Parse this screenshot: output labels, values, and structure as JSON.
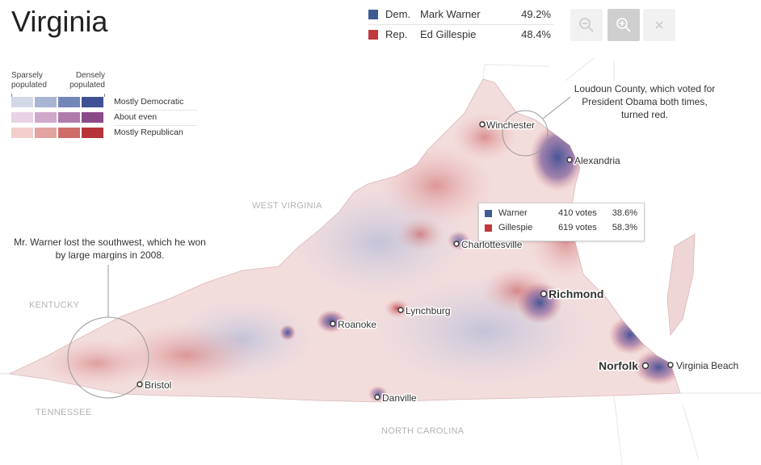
{
  "title": "Virginia",
  "results": [
    {
      "party": "Dem.",
      "name": "Mark Warner",
      "pct": "49.2%",
      "color": "#3e5c93"
    },
    {
      "party": "Rep.",
      "name": "Ed Gillespie",
      "pct": "48.4%",
      "color": "#c0393c"
    }
  ],
  "controls": {
    "zoom_out_icon": "zoom-out-icon",
    "zoom_in_icon": "zoom-in-icon",
    "close_icon": "close-icon"
  },
  "legend": {
    "sparse": "Sparsely populated",
    "dense": "Densely populated",
    "rows": [
      {
        "label": "Mostly Democratic",
        "colors": [
          "#d3d8e7",
          "#a8b5d2",
          "#7287b8",
          "#3e5192"
        ]
      },
      {
        "label": "About even",
        "colors": [
          "#e7d3e4",
          "#cfa8ca",
          "#b07aab",
          "#8a4a88"
        ]
      },
      {
        "label": "Mostly Republican",
        "colors": [
          "#f2cfcc",
          "#e3a3a0",
          "#cf6c6a",
          "#b5343a"
        ]
      }
    ]
  },
  "map": {
    "states": {
      "west_virginia": "WEST VIRGINIA",
      "kentucky": "KENTUCKY",
      "tennessee": "TENNESSEE",
      "north_carolina": "NORTH CAROLINA"
    },
    "cities": {
      "winchester": "Winchester",
      "alexandria": "Alexandria",
      "charlottesville": "Charlottesville",
      "richmond": "Richmond",
      "lynchburg": "Lynchburg",
      "roanoke": "Roanoke",
      "norfolk": "Norfolk",
      "virginia_beach": "Virginia Beach",
      "bristol": "Bristol",
      "danville": "Danville"
    }
  },
  "annotations": {
    "loudoun": "Loudoun County, which voted for President Obama both times, turned red.",
    "southwest": "Mr. Warner lost the southwest, which he won by large margins in 2008."
  },
  "tooltip": {
    "rows": [
      {
        "name": "Warner",
        "votes": "410 votes",
        "pct": "38.6%",
        "color": "#3e5c93"
      },
      {
        "name": "Gillespie",
        "votes": "619 votes",
        "pct": "58.3%",
        "color": "#c0393c"
      }
    ]
  }
}
